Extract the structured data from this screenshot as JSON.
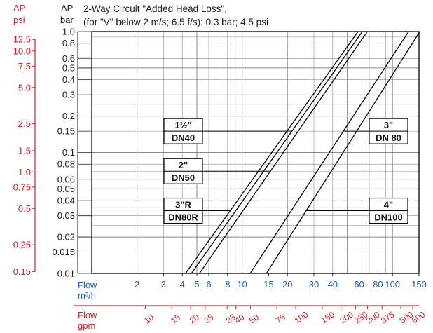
{
  "colors": {
    "bar": "#1a1a1a",
    "psi": "#d0202a",
    "flow": "#1f5fb0",
    "gpm": "#d0202a",
    "grid": "#8a8a8a"
  },
  "chart_data": {
    "type": "line",
    "title_line1": "2-Way Circuit \"Added Head Loss\",",
    "title_line2": "(for \"V\" below 2 m/s; 6.5 f/s): 0.3 bar; 4.5 psi",
    "y_label_bar_1": "ΔP",
    "y_label_bar_2": "bar",
    "y_label_psi_1": "ΔP",
    "y_label_psi_2": "psi",
    "x_label_1": "Flow",
    "x_label_2": "m³/h",
    "x2_label_1": "Flow",
    "x2_label_2": "gpm",
    "x_scale": "log",
    "y_scale": "log",
    "xlim": [
      1,
      150
    ],
    "ylim": [
      0.01,
      1.0
    ],
    "grid": true,
    "y_ticks_bar": [
      "1.0",
      "0.8",
      "0.6",
      "0.5",
      "0.4",
      "0.3",
      "0.2",
      "0.15",
      "0.1",
      "0.08",
      "0.06",
      "0.05",
      "0.04",
      "0.03",
      "0.02",
      "0.015",
      "0.01"
    ],
    "y_ticks_bar_values": [
      1.0,
      0.8,
      0.6,
      0.5,
      0.4,
      0.3,
      0.2,
      0.15,
      0.1,
      0.08,
      0.06,
      0.05,
      0.04,
      0.03,
      0.02,
      0.015,
      0.01
    ],
    "y_ticks_psi": [
      "12.5",
      "10.0",
      "7.5",
      "5.0",
      "2.5",
      "1.5",
      "1.0",
      "0.75",
      "0.5",
      "0.25",
      "0.15"
    ],
    "y_ticks_psi_values": [
      12.5,
      10.0,
      7.5,
      5.0,
      2.5,
      1.5,
      1.0,
      0.75,
      0.5,
      0.25,
      0.15
    ],
    "x_ticks": [
      "2",
      "3",
      "4",
      "5",
      "6",
      "8",
      "10",
      "15",
      "20",
      "30",
      "40",
      "60",
      "80",
      "100",
      "150"
    ],
    "x_ticks_values": [
      2,
      3,
      4,
      5,
      6,
      8,
      10,
      15,
      20,
      30,
      40,
      60,
      80,
      100,
      150
    ],
    "x2_ticks": [
      "10",
      "15",
      "20",
      "25",
      "35",
      "40",
      "50",
      "75",
      "100",
      "150",
      "200",
      "250",
      "300",
      "375",
      "500",
      "600"
    ],
    "x2_ticks_values": [
      10,
      15,
      20,
      25,
      35,
      40,
      50,
      75,
      100,
      150,
      200,
      250,
      300,
      375,
      500,
      600
    ],
    "series": [
      {
        "name_line1": "1½\"",
        "name_line2": "DN40",
        "x": [
          4.6,
          63
        ],
        "y": [
          0.01,
          1.0
        ]
      },
      {
        "name_line1": "2\"",
        "name_line2": "DN50",
        "x": [
          5.2,
          68
        ],
        "y": [
          0.01,
          1.0
        ]
      },
      {
        "name_line1": "3\"R",
        "name_line2": "DN80R",
        "x": [
          4.2,
          59
        ],
        "y": [
          0.01,
          1.0
        ]
      },
      {
        "name_line1": "3\"",
        "name_line2": "DN 80",
        "x": [
          11.3,
          128
        ],
        "y": [
          0.01,
          1.0
        ]
      },
      {
        "name_line1": "4\"",
        "name_line2": "DN100",
        "x": [
          14.5,
          152
        ],
        "y": [
          0.01,
          1.0
        ]
      }
    ],
    "callouts": [
      {
        "series": 0,
        "side": "left",
        "y": 0.15
      },
      {
        "series": 1,
        "side": "left",
        "y": 0.07
      },
      {
        "series": 2,
        "side": "left",
        "y": 0.033
      },
      {
        "series": 3,
        "side": "right",
        "y": 0.15
      },
      {
        "series": 4,
        "side": "right",
        "y": 0.033
      }
    ]
  }
}
